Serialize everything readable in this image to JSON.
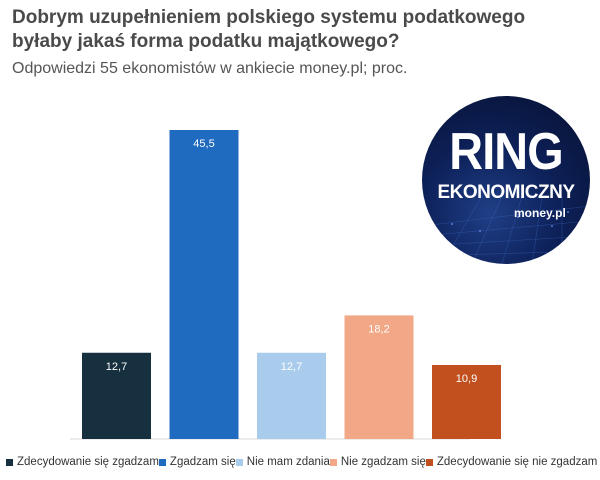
{
  "header": {
    "title_line1": "Dobrym uzupełnieniem polskiego systemu podatkowego",
    "title_line2": "byłaby jakaś forma podatku majątkowego?",
    "subtitle": "Odpowiedzi 55 ekonomistów w ankiecie money.pl; proc."
  },
  "logo": {
    "line1": "RING",
    "line2": "EKONOMICZNY",
    "line3": "money.pl"
  },
  "chart_data": {
    "type": "bar",
    "categories": [
      "Zdecydowanie się zgadzam",
      "Zgadzam się",
      "Nie mam zdania",
      "Nie zgadzam się",
      "Zdecydowanie się nie zgadzam"
    ],
    "values": [
      12.7,
      45.5,
      12.7,
      18.2,
      10.9
    ],
    "value_labels": [
      "12,7",
      "45,5",
      "12,7",
      "18,2",
      "10,9"
    ],
    "colors": [
      "#17303f",
      "#1f6bbf",
      "#a9cbec",
      "#f2a886",
      "#c1501e"
    ],
    "label_colors": [
      "#ffffff",
      "#ffffff",
      "#ffffff",
      "#ffffff",
      "#ffffff"
    ],
    "title": "",
    "xlabel": "",
    "ylabel": "",
    "ylim": [
      0,
      50
    ],
    "grid": false,
    "legend_position": "bottom"
  },
  "legend": {
    "items": [
      {
        "label": "Zdecydowanie się zgadzam",
        "color": "#17303f"
      },
      {
        "label": "Zgadzam się",
        "color": "#1f6bbf"
      },
      {
        "label": "Nie mam zdania",
        "color": "#a9cbec"
      },
      {
        "label": "Nie zgadzam się",
        "color": "#f2a886"
      },
      {
        "label": "Zdecydowanie się nie zgadzam",
        "color": "#c1501e"
      }
    ]
  }
}
